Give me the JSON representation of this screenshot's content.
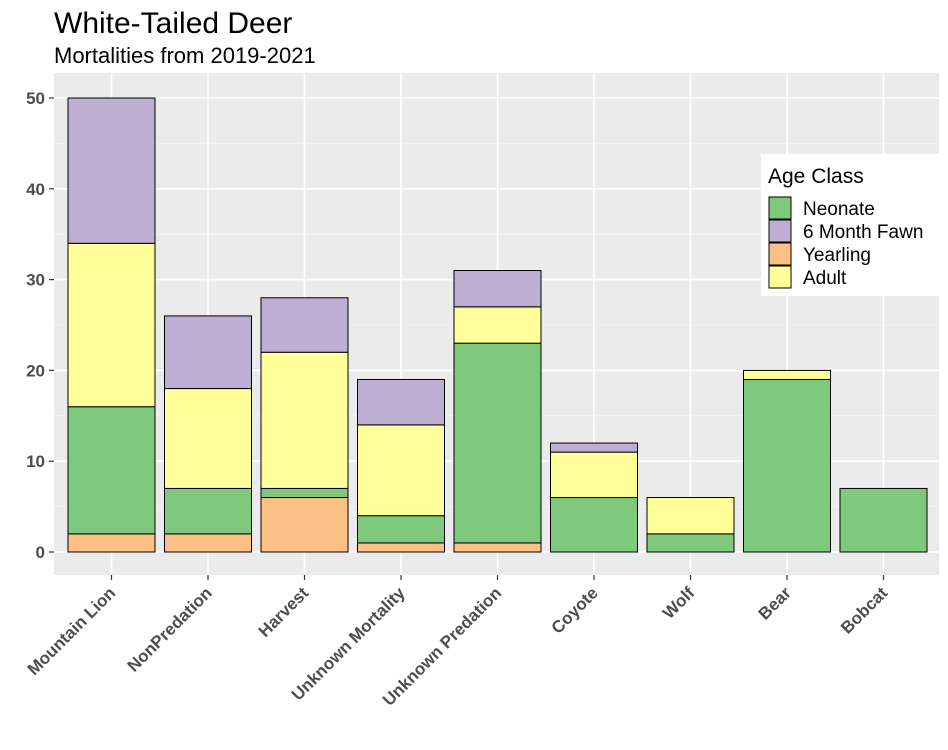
{
  "chart_data": {
    "type": "bar",
    "stacked": true,
    "title": "White-Tailed Deer",
    "subtitle": "Mortalities from 2019-2021",
    "xlabel": "",
    "ylabel": "",
    "ylim": [
      0,
      50
    ],
    "yticks": [
      "0",
      "10",
      "20",
      "30",
      "40",
      "50"
    ],
    "grid": true,
    "legend_title": "Age Class",
    "legend_position": "right",
    "categories": [
      "Mountain Lion",
      "NonPredation",
      "Harvest",
      "Unknown Mortality",
      "Unknown Predation",
      "Coyote",
      "Wolf",
      "Bear",
      "Bobcat"
    ],
    "series": [
      {
        "name": "Yearling",
        "color": "#fdc086",
        "values": [
          2,
          2,
          6,
          1,
          1,
          0,
          0,
          0,
          0
        ]
      },
      {
        "name": "Neonate",
        "color": "#7fc97f",
        "values": [
          14,
          5,
          1,
          3,
          22,
          6,
          2,
          19,
          7
        ]
      },
      {
        "name": "Adult",
        "color": "#ffff99",
        "values": [
          18,
          11,
          15,
          10,
          4,
          5,
          4,
          1,
          0
        ]
      },
      {
        "name": "6 Month Fawn",
        "color": "#beaed4",
        "values": [
          16,
          8,
          6,
          5,
          4,
          1,
          0,
          0,
          0
        ]
      }
    ],
    "legend_order": [
      "Neonate",
      "6 Month Fawn",
      "Yearling",
      "Adult"
    ]
  }
}
